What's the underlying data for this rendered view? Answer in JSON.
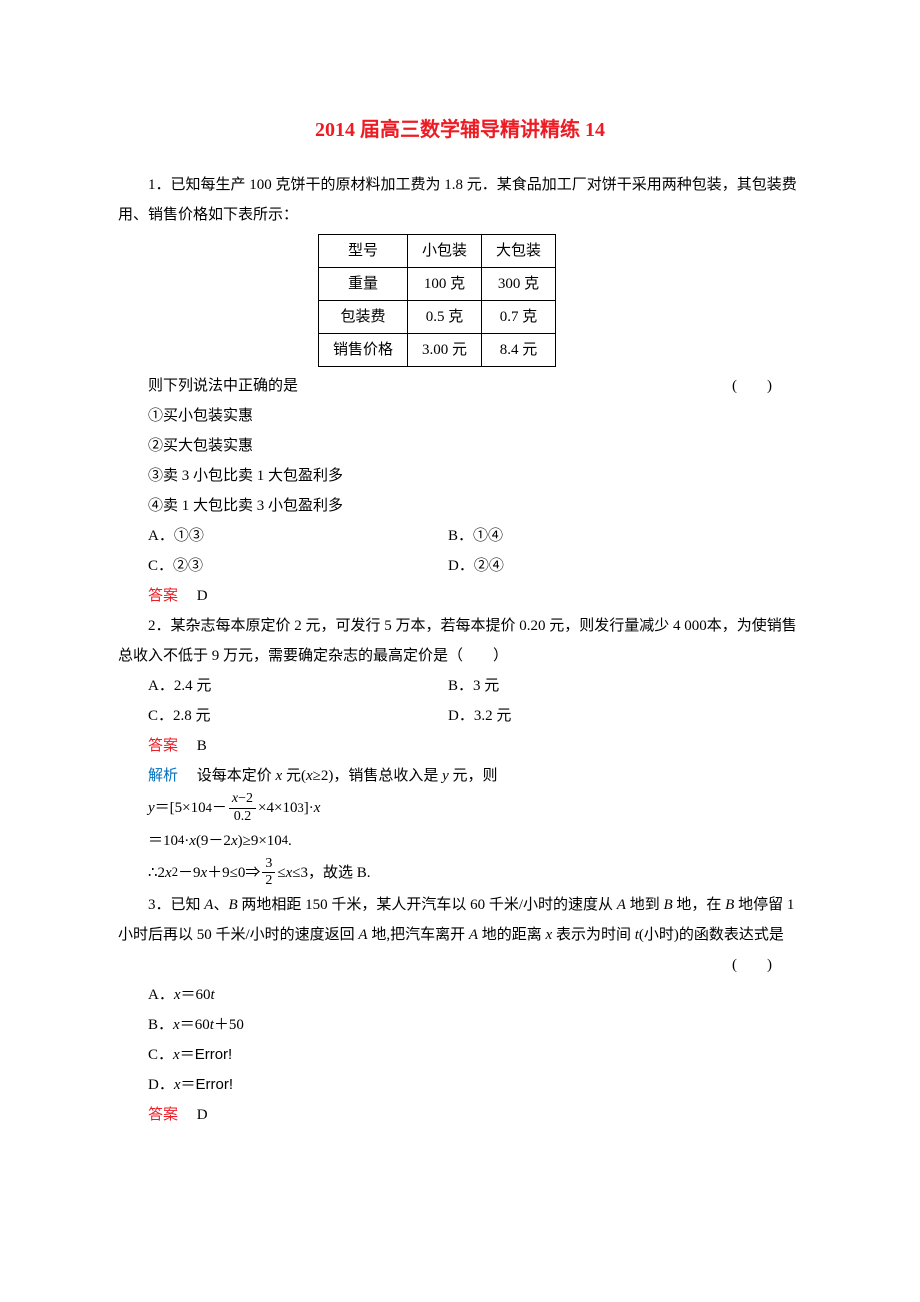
{
  "title": "2014 届高三数学辅导精讲精练 14",
  "q1": {
    "intro": "1．已知每生产 100 克饼干的原材料加工费为 1.8 元．某食品加工厂对饼干采用两种包装，其包装费用、销售价格如下表所示：",
    "table": {
      "rows": [
        [
          "型号",
          "小包装",
          "大包装"
        ],
        [
          "重量",
          "100 克",
          "300 克"
        ],
        [
          "包装费",
          "0.5 克",
          "0.7 克"
        ],
        [
          "销售价格",
          "3.00 元",
          "8.4 元"
        ]
      ]
    },
    "lead": "则下列说法中正确的是",
    "paren": "(　　)",
    "s1": "①买小包装实惠",
    "s2": "②买大包装实惠",
    "s3": "③卖 3 小包比卖 1 大包盈利多",
    "s4": "④卖 1 大包比卖 3 小包盈利多",
    "oA": "A．①③",
    "oB": "B．①④",
    "oC": "C．②③",
    "oD": "D．②④",
    "ansLabel": "答案",
    "ans": "D"
  },
  "q2": {
    "intro": "2．某杂志每本原定价 2 元，可发行 5 万本，若每本提价 0.20 元，则发行量减少 4 000本，为使销售总收入不低于 9 万元，需要确定杂志的最高定价是（　　）",
    "oA": "A．2.4 元",
    "oB": "B．3 元",
    "oC": "C．2.8 元",
    "oD": "D．3.2 元",
    "ansLabel": "答案",
    "ans": "B",
    "expLabel": "解析",
    "expIntroA": "设每本定价 ",
    "expIntroB": " 元(",
    "expIntroC": "≥2)，销售总收入是 ",
    "expIntroD": " 元，则",
    "f1a": "＝[5×10",
    "f1b": "－",
    "fracNum": "x－2",
    "fracDen": "0.2",
    "f1c": "×4×10",
    "f1d": "]·",
    "f2a": "＝10",
    "f2b": "·",
    "f2c": "(9－2",
    "f2d": ")≥9×10",
    "f2e": ".",
    "f3a": "∴2",
    "f3b": "－9",
    "f3c": "＋9≤0⇒",
    "frac2Num": "3",
    "frac2Den": "2",
    "f3d": "≤",
    "f3e": "≤3，故选 B."
  },
  "q3": {
    "introA": "3．已知 ",
    "introB": "、",
    "introC": " 两地相距 150 千米，某人开汽车以 60 千米/小时的速度从 ",
    "introD": " 地到 ",
    "introE": " 地，在 ",
    "introF": " 地停留 1 小时后再以 50 千米/小时的速度返回 ",
    "introG": " 地,把汽车离开 ",
    "introH": " 地的距离 ",
    "introI": " 表示为时间 ",
    "introJ": "(小时)的函数表达式是",
    "paren": "(　　)",
    "oA_a": "A．",
    "oA_b": "＝60",
    "oB_a": "B．",
    "oB_b": "＝60",
    "oB_c": "＋50",
    "oC_a": "C．",
    "oC_b": "＝",
    "oC_c": "Error!",
    "oD_a": "D．",
    "oD_b": "＝",
    "oD_c": "Error!",
    "ansLabel": "答案",
    "ans": "D"
  },
  "vars": {
    "x": "x",
    "y": "y",
    "t": "t",
    "A": "A",
    "B": "B"
  },
  "colors": {
    "red": "#ed1c24",
    "blue": "#0070c0",
    "text": "#000000",
    "bg": "#ffffff"
  },
  "fonts": {
    "body": "SimSun",
    "math": "Times New Roman",
    "bodySize": 15,
    "titleSize": 20
  }
}
